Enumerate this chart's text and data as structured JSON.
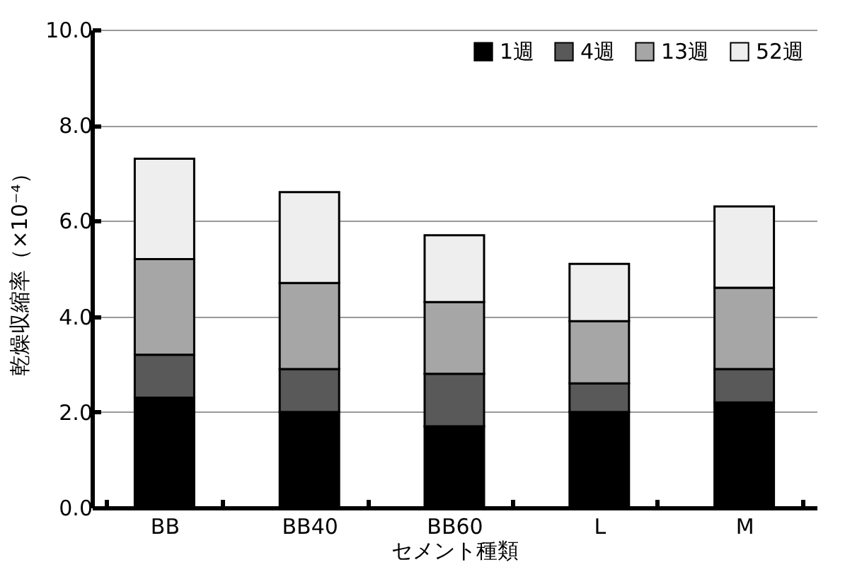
{
  "chart_data": {
    "type": "bar",
    "stacked": true,
    "xlabel": "セメント種類",
    "ylabel": "乾燥収縮率（×10⁻⁴）",
    "categories": [
      "BB",
      "BB40",
      "BB60",
      "L",
      "M"
    ],
    "series": [
      {
        "name": "1週",
        "color": "#000000",
        "values": [
          2.3,
          2.0,
          1.7,
          2.0,
          2.2
        ]
      },
      {
        "name": "4週",
        "color": "#595959",
        "values": [
          0.9,
          0.9,
          1.1,
          0.6,
          0.7
        ]
      },
      {
        "name": "13週",
        "color": "#a6a6a6",
        "values": [
          2.0,
          1.8,
          1.5,
          1.3,
          1.7
        ]
      },
      {
        "name": "52週",
        "color": "#eeeeee",
        "values": [
          2.1,
          1.9,
          1.4,
          1.2,
          1.7
        ]
      }
    ],
    "ylim": [
      0,
      10
    ],
    "yticks": [
      {
        "value": 0,
        "label": "0.0"
      },
      {
        "value": 2,
        "label": "2.0"
      },
      {
        "value": 4,
        "label": "4.0"
      },
      {
        "value": 6,
        "label": "6.0"
      },
      {
        "value": 8,
        "label": "8.0"
      },
      {
        "value": 10,
        "label": "10.0"
      }
    ],
    "grid": "y",
    "legend": "top right"
  }
}
